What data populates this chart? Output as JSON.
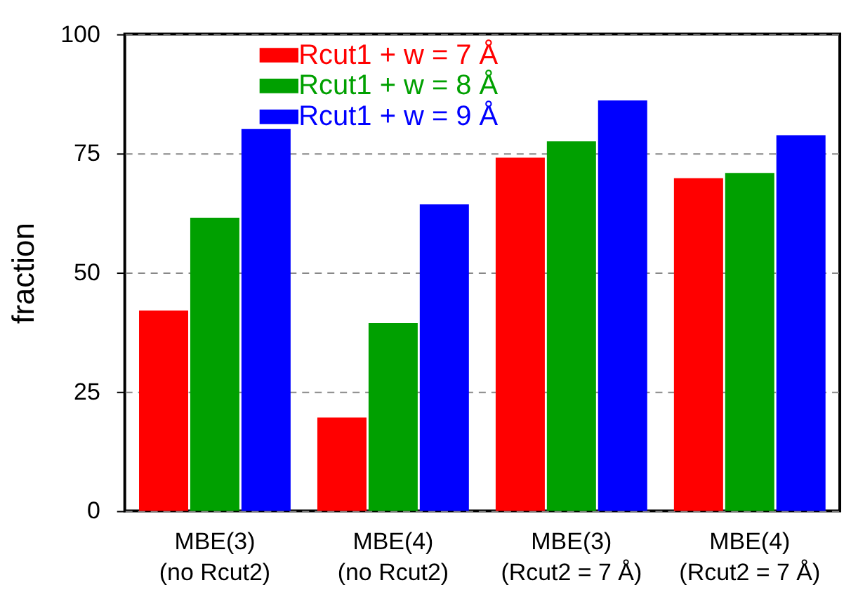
{
  "chart_data": {
    "type": "bar",
    "ylabel": "fraction",
    "categories": [
      "MBE(3)\n(no Rcut2)",
      "MBE(4)\n(no Rcut2)",
      "MBE(3)\n(Rcut2 = 7 Å)",
      "MBE(4)\n(Rcut2 = 7 Å)"
    ],
    "series": [
      {
        "name": "Rcut1 + w = 7 Å",
        "color": "#ff0000",
        "values": [
          42,
          19.6,
          74.1,
          69.8
        ]
      },
      {
        "name": "Rcut1 + w = 8 Å",
        "color": "#00a000",
        "values": [
          61.5,
          39.4,
          77.5,
          70.9
        ]
      },
      {
        "name": "Rcut1 + w = 9 Å",
        "color": "#0000ff",
        "values": [
          80.1,
          64.3,
          86.1,
          78.8
        ]
      }
    ],
    "ylim": [
      0,
      100
    ],
    "yticks": [
      0,
      25,
      50,
      75,
      100
    ],
    "grid": "y",
    "legend": "top left"
  }
}
